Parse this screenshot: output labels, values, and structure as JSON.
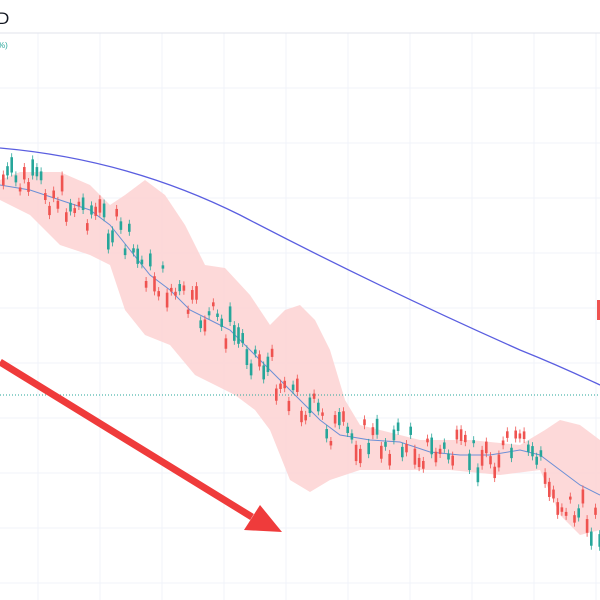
{
  "header": {
    "symbol_fragment": "D",
    "change_fragment": "%)"
  }
}
